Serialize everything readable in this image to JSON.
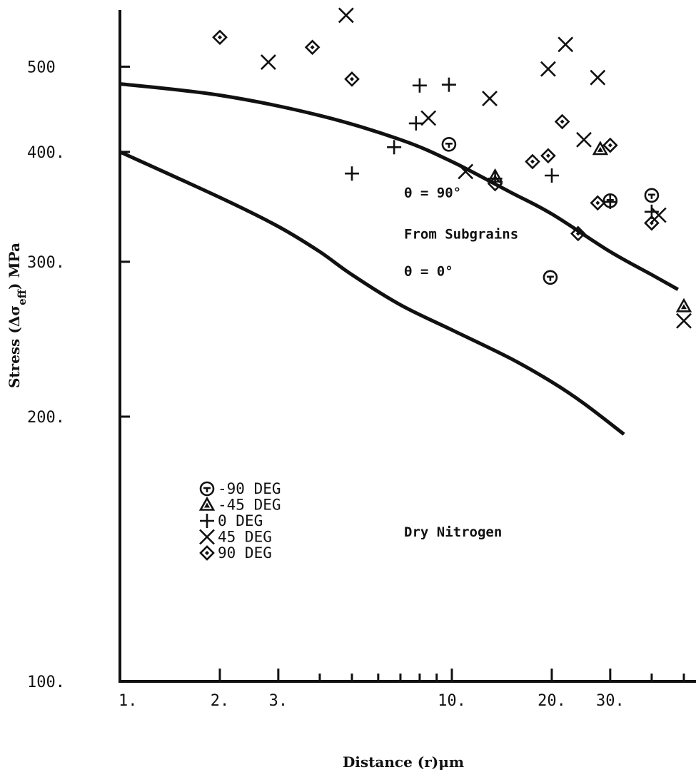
{
  "chart_data": {
    "type": "scatter",
    "xlabel": "Distance (r)μm",
    "ylabel": "Stress (Δσ_eff) MPa",
    "ylabel_parts": {
      "prefix": "Stress (Δσ",
      "subscript": "eff",
      "suffix": ") MPa"
    },
    "x_scale": "log",
    "y_scale": "log",
    "xlim": [
      1,
      50
    ],
    "ylim": [
      100,
      580
    ],
    "x_ticks": [
      {
        "value": 1,
        "label": "1."
      },
      {
        "value": 2,
        "label": "2."
      },
      {
        "value": 3,
        "label": "3."
      },
      {
        "value": 10,
        "label": "10."
      },
      {
        "value": 20,
        "label": "20."
      },
      {
        "value": 30,
        "label": "30."
      }
    ],
    "x_minor_ticks": [
      4,
      5,
      6,
      7,
      8,
      9,
      40,
      50
    ],
    "y_ticks": [
      {
        "value": 100,
        "label": "100."
      },
      {
        "value": 200,
        "label": "200."
      },
      {
        "value": 300,
        "label": "300."
      },
      {
        "value": 400,
        "label": "400."
      },
      {
        "value": 500,
        "label": "500"
      }
    ],
    "grid": false,
    "legend_position": "bottom-left",
    "series": [
      {
        "name": "-90 DEG",
        "marker": "circle-minus",
        "points": [
          [
            9.8,
            408
          ],
          [
            19.8,
            288
          ],
          [
            30,
            352
          ],
          [
            40,
            357
          ]
        ]
      },
      {
        "name": "-45 DEG",
        "marker": "triangle",
        "points": [
          [
            13.5,
            375
          ],
          [
            28,
            403
          ],
          [
            50,
            267
          ]
        ]
      },
      {
        "name": "0 DEG",
        "marker": "plus",
        "points": [
          [
            5,
            378
          ],
          [
            8,
            476
          ],
          [
            9.8,
            477
          ],
          [
            6.7,
            405
          ],
          [
            7.8,
            431
          ],
          [
            20,
            376
          ],
          [
            30,
            351
          ],
          [
            40,
            342
          ],
          [
            13.5,
            373
          ]
        ]
      },
      {
        "name": "45 DEG",
        "marker": "x",
        "points": [
          [
            4.8,
            572
          ],
          [
            2.8,
            506
          ],
          [
            13,
            460
          ],
          [
            8.5,
            437
          ],
          [
            11,
            380
          ],
          [
            19.5,
            497
          ],
          [
            22,
            530
          ],
          [
            25,
            413
          ],
          [
            27.5,
            486
          ],
          [
            42,
            339
          ],
          [
            50,
            257
          ]
        ]
      },
      {
        "name": "90 DEG",
        "marker": "diamond",
        "points": [
          [
            2,
            540
          ],
          [
            3.8,
            526
          ],
          [
            5,
            484
          ],
          [
            13.5,
            368
          ],
          [
            17.5,
            390
          ],
          [
            19.5,
            396
          ],
          [
            21.5,
            433
          ],
          [
            24,
            323
          ],
          [
            27.5,
            350
          ],
          [
            30,
            407
          ],
          [
            40,
            332
          ]
        ]
      }
    ],
    "curves": [
      {
        "points": [
          [
            1,
            478
          ],
          [
            2,
            464
          ],
          [
            4,
            440
          ],
          [
            7,
            413
          ],
          [
            10,
            390
          ],
          [
            15,
            360
          ],
          [
            20,
            340
          ],
          [
            30,
            308
          ],
          [
            40,
            290
          ],
          [
            48,
            279
          ]
        ]
      },
      {
        "points": [
          [
            1,
            400
          ],
          [
            2,
            355
          ],
          [
            3,
            329
          ],
          [
            4,
            308
          ],
          [
            5,
            290
          ],
          [
            7,
            268
          ],
          [
            10,
            251
          ],
          [
            15,
            233
          ],
          [
            20,
            219
          ],
          [
            25,
            207
          ],
          [
            33,
            191
          ]
        ]
      }
    ],
    "annotations": [
      {
        "text": "θ = 90°",
        "x": 19.8,
        "y": 360
      },
      {
        "text": "From Subgrains",
        "x": 19.8,
        "y": 323
      },
      {
        "text": "θ = 0°",
        "x": 19.8,
        "y": 293
      },
      {
        "text": "Dry Nitrogen",
        "x": 22,
        "y": 148
      }
    ]
  }
}
